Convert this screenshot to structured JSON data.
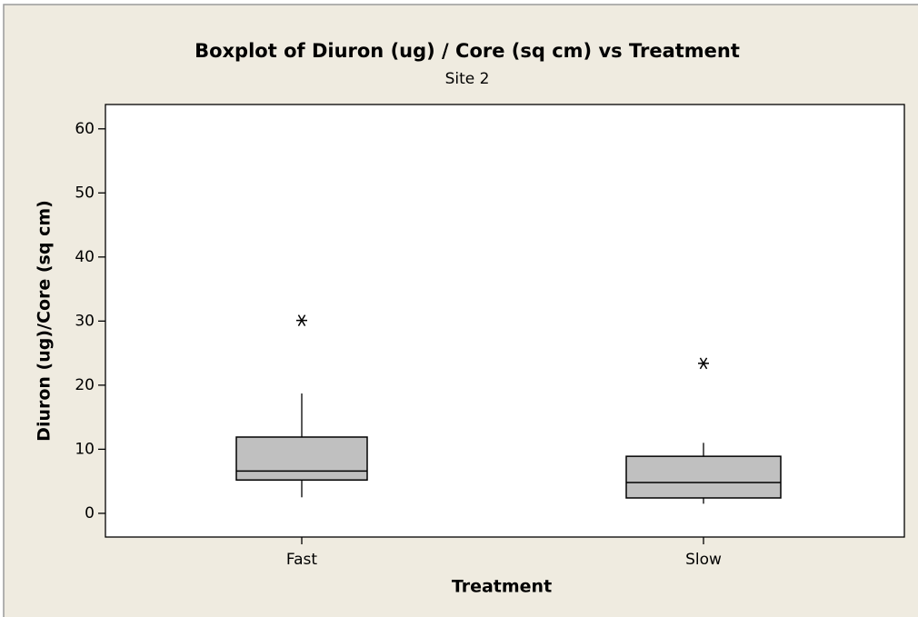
{
  "chart_data": {
    "type": "box",
    "title": "Boxplot of Diuron (ug) / Core (sq cm) vs Treatment",
    "subtitle": "Site 2",
    "x_label": "Treatment",
    "y_label": "Diuron (ug)/Core (sq cm)",
    "categories": [
      "Fast",
      "Slow"
    ],
    "boxes": [
      {
        "min": 2.5,
        "q1": 5.2,
        "median": 6.6,
        "q3": 11.9,
        "max": 18.7,
        "outliers": [
          30.1
        ]
      },
      {
        "min": 1.5,
        "q1": 2.4,
        "median": 4.8,
        "q3": 8.9,
        "max": 11,
        "outliers": [
          23.4
        ]
      }
    ],
    "color": "#c0c0c0",
    "ylim": [
      -3.7,
      63.8
    ],
    "yticks": [
      0,
      10,
      20,
      30,
      40,
      50,
      60
    ]
  }
}
